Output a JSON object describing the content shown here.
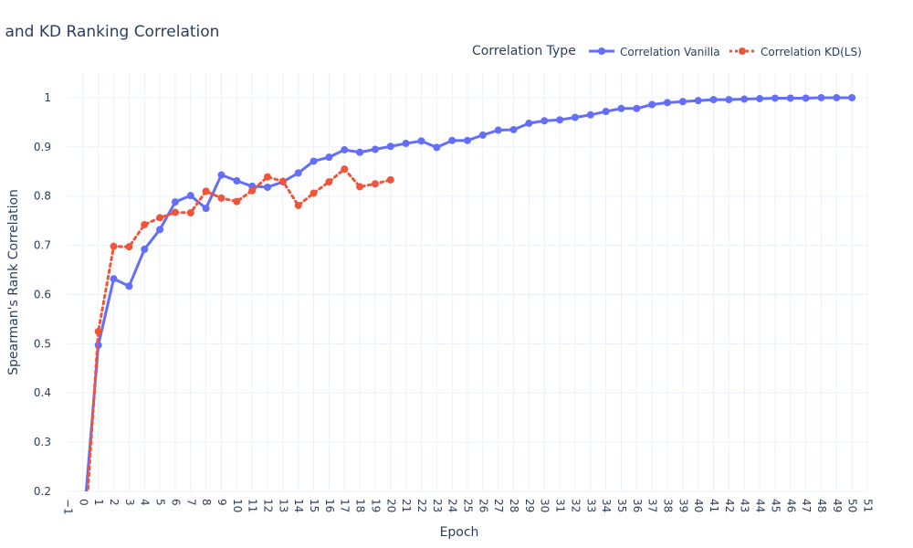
{
  "chart_data": {
    "type": "line",
    "title": "Vanilla and KD Ranking Correlation",
    "xlabel": "Epoch",
    "ylabel": "Spearman's Rank Correlation",
    "xlim": [
      -1,
      51
    ],
    "ylim": [
      0.2,
      1.05
    ],
    "x_ticks": [
      -1,
      0,
      1,
      2,
      3,
      4,
      5,
      6,
      7,
      8,
      9,
      10,
      11,
      12,
      13,
      14,
      15,
      16,
      17,
      18,
      19,
      20,
      21,
      22,
      23,
      24,
      25,
      26,
      27,
      28,
      29,
      30,
      31,
      32,
      33,
      34,
      35,
      36,
      37,
      38,
      39,
      40,
      41,
      42,
      43,
      44,
      45,
      46,
      47,
      48,
      49,
      50,
      51
    ],
    "y_ticks": [
      0.2,
      0.3,
      0.4,
      0.5,
      0.6,
      0.7,
      0.8,
      0.9,
      1
    ],
    "legend": {
      "title": "Correlation Type",
      "placement": "top-right",
      "orientation": "horizontal"
    },
    "grid": true,
    "series": [
      {
        "name": "Correlation Vanilla",
        "color": "#636efa",
        "line_style": "solid",
        "x": [
          0,
          1,
          2,
          3,
          4,
          5,
          6,
          7,
          8,
          9,
          10,
          11,
          12,
          13,
          14,
          15,
          16,
          17,
          18,
          19,
          20,
          21,
          22,
          23,
          24,
          25,
          26,
          27,
          28,
          29,
          30,
          31,
          32,
          33,
          34,
          35,
          36,
          37,
          38,
          39,
          40,
          41,
          42,
          43,
          44,
          45,
          46,
          47,
          48,
          49,
          50
        ],
        "y": [
          0.12,
          0.497,
          0.632,
          0.617,
          0.692,
          0.732,
          0.788,
          0.801,
          0.775,
          0.843,
          0.831,
          0.82,
          0.818,
          0.829,
          0.847,
          0.871,
          0.879,
          0.894,
          0.889,
          0.895,
          0.901,
          0.907,
          0.912,
          0.899,
          0.913,
          0.913,
          0.924,
          0.934,
          0.935,
          0.948,
          0.953,
          0.955,
          0.96,
          0.965,
          0.972,
          0.978,
          0.978,
          0.986,
          0.99,
          0.992,
          0.994,
          0.996,
          0.996,
          0.997,
          0.998,
          0.999,
          0.999,
          0.999,
          1.0,
          1.0,
          1.0
        ]
      },
      {
        "name": "Correlation KD(LS)",
        "color": "#ef553b",
        "line_style": "dotted",
        "x": [
          0,
          1,
          2,
          3,
          4,
          5,
          6,
          7,
          8,
          9,
          10,
          11,
          12,
          13,
          14,
          15,
          16,
          17,
          18,
          19,
          20
        ],
        "y": [
          0.05,
          0.525,
          0.698,
          0.697,
          0.742,
          0.756,
          0.767,
          0.766,
          0.81,
          0.796,
          0.789,
          0.811,
          0.839,
          0.83,
          0.781,
          0.806,
          0.829,
          0.855,
          0.819,
          0.825,
          0.833
        ]
      }
    ]
  }
}
